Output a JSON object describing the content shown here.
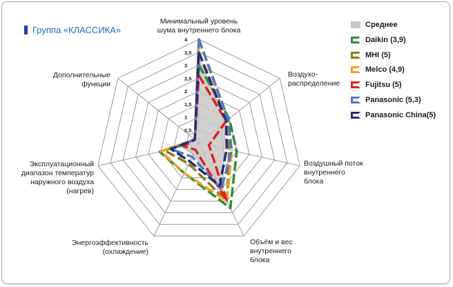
{
  "group_title": "Группа «КЛАССИКА»",
  "chart_data": {
    "type": "radar",
    "axes": [
      [
        "Минимальный уровень",
        "шума внутреннего блока"
      ],
      [
        "Воздухо-",
        "распределение"
      ],
      [
        "Воздушный поток",
        "внутреннего",
        "блока"
      ],
      [
        "Объём и вес",
        "внутреннего",
        "блока"
      ],
      [
        "Энергоэффективность",
        "(охлаждение)"
      ],
      [
        "Эксплуатационный",
        "диапазон температур",
        "наружного воздуха",
        "(нагрев)"
      ],
      [
        "Дополнительные",
        "функции"
      ]
    ],
    "ticks": [
      "0,5",
      "1",
      "1,5",
      "2",
      "2,5",
      "3",
      "3,5",
      "4"
    ],
    "rmax": 4,
    "series": [
      {
        "name": "Среднее",
        "color": "#c8c8c8",
        "style": "fill",
        "values": [
          3.3,
          1.3,
          1.0,
          2.1,
          0.5,
          0.7,
          0.2
        ]
      },
      {
        "name": "Daikin (3,9)",
        "color": "#2e8b3a",
        "style": "dash",
        "values": [
          3.0,
          1.5,
          1.5,
          2.8,
          1.3,
          1.55,
          0.2
        ]
      },
      {
        "name": "MHI (5)",
        "color": "#8a7a1a",
        "style": "dash",
        "values": [
          4.0,
          1.4,
          1.2,
          2.5,
          0.9,
          1.35,
          0.2
        ]
      },
      {
        "name": "Melco (4,9)",
        "color": "#f0a020",
        "style": "dash",
        "values": [
          4.0,
          1.4,
          1.3,
          2.5,
          1.3,
          1.5,
          0.2
        ]
      },
      {
        "name": "Fujitsu (5)",
        "color": "#e02020",
        "style": "dash",
        "values": [
          2.6,
          1.35,
          0.4,
          2.5,
          0.3,
          0.6,
          0.2
        ]
      },
      {
        "name": "Panasonic (5,3)",
        "color": "#5078c0",
        "style": "dash",
        "values": [
          4.0,
          1.45,
          1.3,
          2.0,
          0.6,
          1.1,
          0.2
        ]
      },
      {
        "name": "Panasonic China(5)",
        "color": "#2a2a6e",
        "style": "dash",
        "values": [
          3.5,
          1.35,
          1.1,
          1.85,
          0.8,
          1.1,
          0.2
        ]
      }
    ]
  }
}
